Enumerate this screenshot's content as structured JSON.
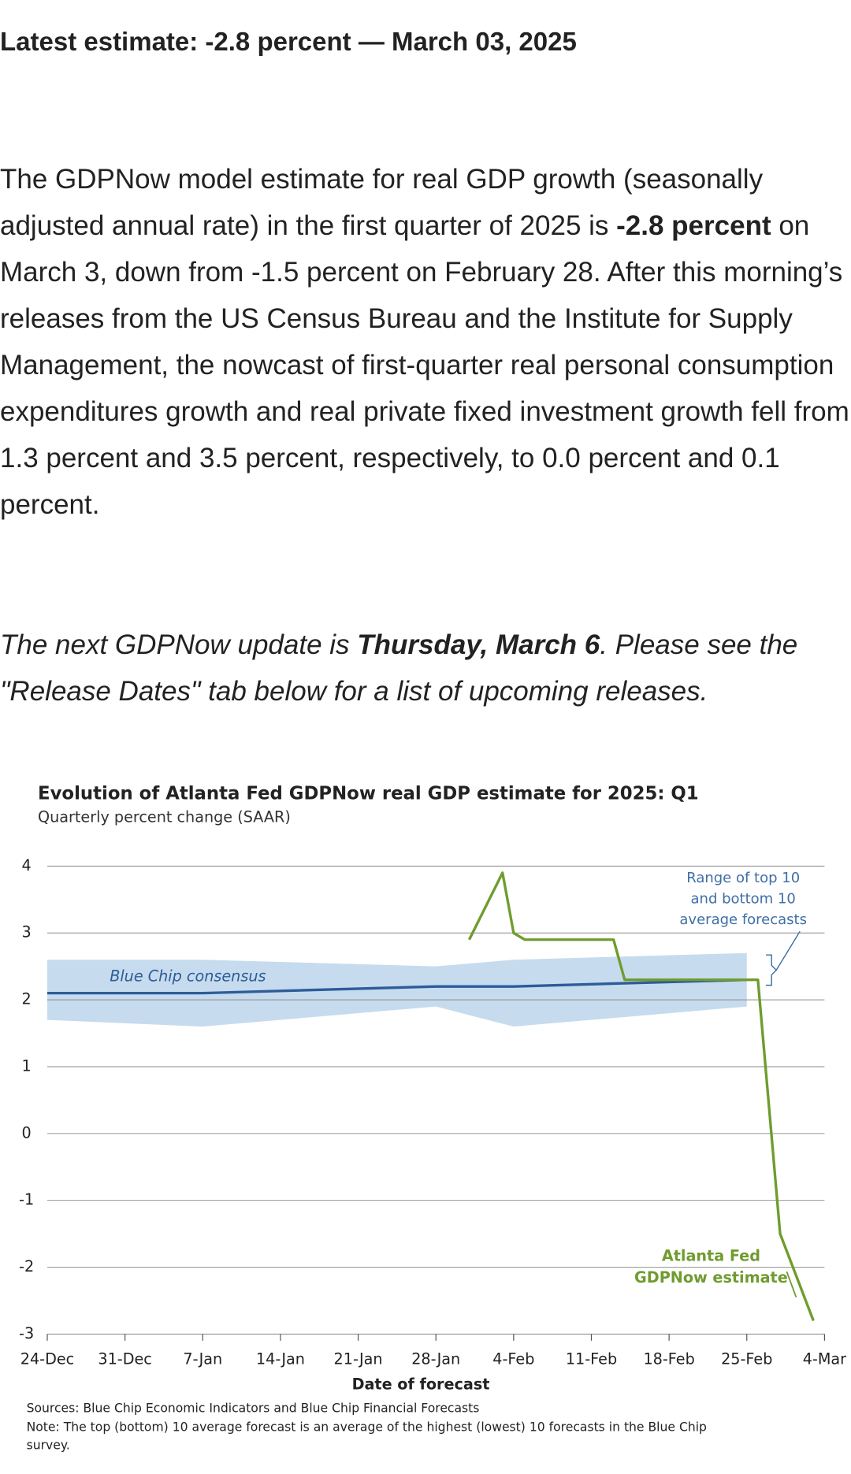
{
  "header": {
    "title": "Latest estimate: -2.8 percent — March 03, 2025"
  },
  "paragraph": [
    "The GDPNow model estimate for real GDP growth (seasonally adjusted annual rate) in the first quarter of 2025 is ",
    "-2.8 percent",
    " on March 3, down from -1.5 percent on February 28. After this morning’s releases from the US Census Bureau and the Institute for Supply Management, the nowcast of first-quarter real personal consumption expenditures growth and real private fixed investment growth fell from 1.3 percent and 3.5 percent, respectively, to 0.0 percent and 0.1 percent."
  ],
  "next_update": [
    "The next GDPNow update is ",
    "Thursday, March 6",
    ". Please see the \"Release Dates\" tab below for a list of upcoming releases."
  ],
  "chart_data": {
    "type": "line",
    "title": "Evolution of Atlanta Fed GDPNow real GDP estimate for 2025: Q1",
    "subtitle": "Quarterly percent change (SAAR)",
    "xlabel": "Date of forecast",
    "xlim": [
      "24-Dec",
      "4-Mar"
    ],
    "xticks": [
      "24-Dec",
      "31-Dec",
      "7-Jan",
      "14-Jan",
      "21-Jan",
      "28-Jan",
      "4-Feb",
      "11-Feb",
      "18-Feb",
      "25-Feb",
      "4-Mar"
    ],
    "ylim": [
      -3,
      4
    ],
    "yticks": [
      -3,
      -2,
      -1,
      0,
      1,
      2,
      3,
      4
    ],
    "grid": true,
    "series": [
      {
        "name": "Blue Chip consensus",
        "color": "#2e5c99",
        "band_color": "#c6dbee",
        "x": [
          "24-Dec",
          "7-Jan",
          "28-Jan",
          "4-Feb",
          "25-Feb"
        ],
        "values": [
          2.1,
          2.1,
          2.2,
          2.2,
          2.3
        ],
        "high": [
          2.6,
          2.6,
          2.5,
          2.6,
          2.7
        ],
        "low": [
          1.7,
          1.6,
          1.9,
          1.6,
          1.9
        ]
      },
      {
        "color": "#6f9c2e",
        "x": [
          "31-Jan",
          "3-Feb",
          "4-Feb",
          "5-Feb",
          "13-Feb",
          "14-Feb",
          "19-Feb",
          "26-Feb",
          "28-Feb",
          "3-Mar"
        ],
        "values": [
          2.9,
          3.9,
          3.0,
          2.9,
          2.9,
          2.3,
          2.3,
          2.3,
          -1.5,
          -2.8
        ]
      }
    ],
    "range_annotation": [
      "Range of top 10",
      "and bottom 10",
      "average forecasts"
    ],
    "gdpnow_annotation": [
      "Atlanta Fed",
      "GDPNow estimate"
    ],
    "sources": "Sources: Blue Chip Economic Indicators and Blue Chip Financial Forecasts",
    "note": [
      "Note: The top (bottom) 10 average forecast is an average of the highest (lowest) 10 forecasts in the Blue Chip",
      "survey."
    ]
  }
}
